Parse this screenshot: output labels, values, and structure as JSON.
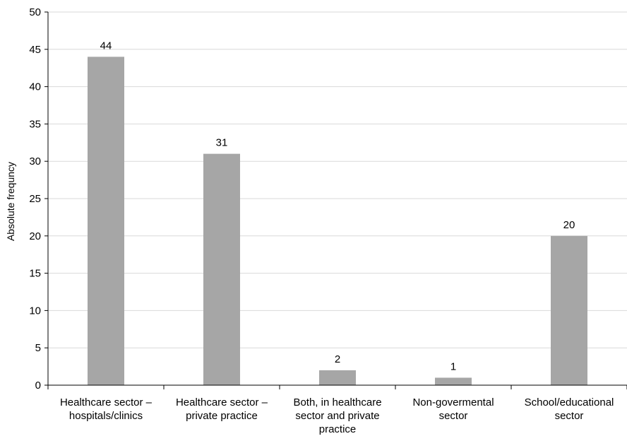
{
  "chart_data": {
    "type": "bar",
    "title": "",
    "xlabel": "",
    "ylabel": "Absolute frequncy",
    "ylim": [
      0,
      50
    ],
    "yticks": [
      "0",
      "5",
      "10",
      "15",
      "20",
      "25",
      "30",
      "35",
      "40",
      "45",
      "50"
    ],
    "categories": [
      [
        "Healthcare sector –",
        "hospitals/clinics"
      ],
      [
        "Healthcare sector –",
        "private practice"
      ],
      [
        "Both, in healthcare",
        "sector and private",
        "practice"
      ],
      [
        "Non-govermental",
        "sector"
      ],
      [
        "School/educational",
        "sector"
      ]
    ],
    "values": [
      44,
      31,
      2,
      1,
      20
    ],
    "data_labels": [
      "44",
      "31",
      "2",
      "1",
      "20"
    ],
    "grid": true,
    "legend": "none",
    "colors": {
      "bar": "#a6a6a6",
      "grid": "#d9d9d9",
      "axis": "#000000"
    }
  }
}
